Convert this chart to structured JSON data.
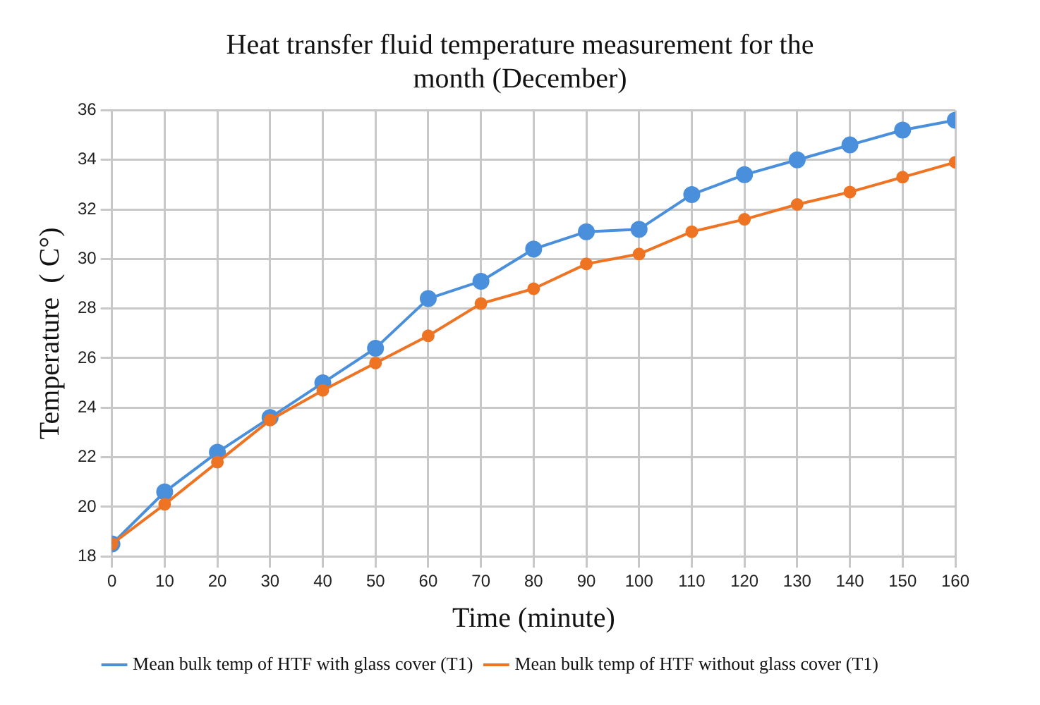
{
  "chart_data": {
    "type": "line",
    "title": "Heat transfer fluid temperature measurement for the month (December)",
    "xlabel": "Time (minute)",
    "ylabel": "Temperature  ( C°)",
    "x": [
      0,
      10,
      20,
      30,
      40,
      50,
      60,
      70,
      80,
      90,
      100,
      110,
      120,
      130,
      140,
      150,
      160
    ],
    "xlim": [
      0,
      160
    ],
    "xticks": [
      0,
      10,
      20,
      30,
      40,
      50,
      60,
      70,
      80,
      90,
      100,
      110,
      120,
      130,
      140,
      150,
      160
    ],
    "ylim": [
      18,
      36
    ],
    "yticks": [
      18,
      20,
      22,
      24,
      26,
      28,
      30,
      32,
      34,
      36
    ],
    "series": [
      {
        "name": "Mean bulk temp of HTF with glass cover (T1)",
        "color": "#4a8fdc",
        "values": [
          18.5,
          20.6,
          22.2,
          23.6,
          25.0,
          26.4,
          28.4,
          29.1,
          30.4,
          31.1,
          31.2,
          32.6,
          33.4,
          34.0,
          34.6,
          35.2,
          35.6
        ]
      },
      {
        "name": "Mean bulk temp of HTF without glass cover (T1)",
        "color": "#ee7424",
        "values": [
          18.5,
          20.1,
          21.8,
          23.5,
          24.7,
          25.8,
          26.9,
          28.2,
          28.8,
          29.8,
          30.2,
          31.1,
          31.6,
          32.2,
          32.7,
          33.3,
          33.9
        ]
      }
    ],
    "grid": true,
    "legend": "bottom",
    "marker": "circle",
    "line_style": "solid"
  }
}
